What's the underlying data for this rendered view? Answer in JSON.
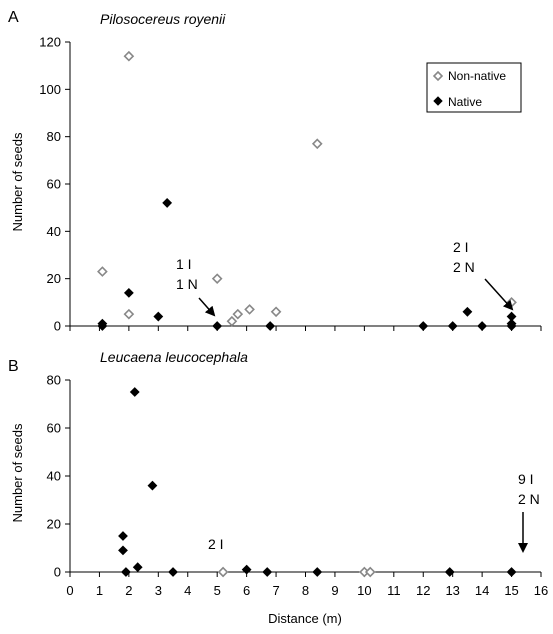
{
  "chart_data": [
    {
      "type": "scatter",
      "panel_label": "A",
      "title": "Pilosocereus royenii",
      "ylabel": "Number of seeds",
      "xlabel": "",
      "xlim": [
        0,
        16
      ],
      "ylim": [
        0,
        120
      ],
      "y_ticks": [
        0,
        20,
        40,
        60,
        80,
        100,
        120
      ],
      "grid": false,
      "legend": {
        "placement": "top-right",
        "entries": [
          "Non-native",
          "Native"
        ]
      },
      "series": [
        {
          "name": "Non-native",
          "marker": "open-diamond",
          "x": [
            1.1,
            2.0,
            2.0,
            5.0,
            5.5,
            5.7,
            6.1,
            7.0,
            8.4,
            15.0
          ],
          "y": [
            23,
            114,
            5,
            20,
            2,
            5,
            7,
            6,
            77,
            10
          ]
        },
        {
          "name": "Native",
          "marker": "filled-diamond",
          "x": [
            1.1,
            1.1,
            2.0,
            3.0,
            3.3,
            5.0,
            6.8,
            12.0,
            13.0,
            13.5,
            14.0,
            15.0,
            15.0,
            15.0
          ],
          "y": [
            0,
            1,
            14,
            4,
            52,
            0,
            0,
            0,
            0,
            6,
            0,
            0,
            1,
            4
          ]
        }
      ],
      "annotations": [
        {
          "lines": [
            "1 I",
            "1 N"
          ],
          "points_to": {
            "x": 5.0,
            "y": 0
          }
        },
        {
          "lines": [
            "2 I",
            "2 N"
          ],
          "points_to": {
            "x": 15.0,
            "y": 4
          }
        }
      ]
    },
    {
      "type": "scatter",
      "panel_label": "B",
      "title": "Leucaena leucocephala",
      "ylabel": "Number of seeds",
      "xlabel": "Distance (m)",
      "xlim": [
        0,
        16
      ],
      "ylim": [
        0,
        80
      ],
      "x_ticks": [
        0,
        1,
        2,
        3,
        4,
        5,
        6,
        7,
        8,
        9,
        10,
        11,
        12,
        13,
        14,
        15,
        16
      ],
      "y_ticks": [
        0,
        20,
        40,
        60,
        80
      ],
      "grid": false,
      "series": [
        {
          "name": "Non-native",
          "marker": "open-diamond",
          "x": [
            5.2,
            10.0,
            10.2
          ],
          "y": [
            0,
            0,
            0
          ]
        },
        {
          "name": "Native",
          "marker": "filled-diamond",
          "x": [
            1.8,
            1.8,
            1.9,
            2.2,
            2.3,
            2.8,
            3.5,
            6.0,
            6.7,
            8.4,
            12.9,
            15.0
          ],
          "y": [
            15,
            9,
            0,
            75,
            2,
            36,
            0,
            1,
            0,
            0,
            0,
            0
          ]
        }
      ],
      "annotations": [
        {
          "lines": [
            "2 I"
          ],
          "points_to": null
        },
        {
          "lines": [
            "9 I",
            "2 N"
          ],
          "points_to": {
            "x": 15.0,
            "y": 0
          }
        }
      ]
    }
  ]
}
